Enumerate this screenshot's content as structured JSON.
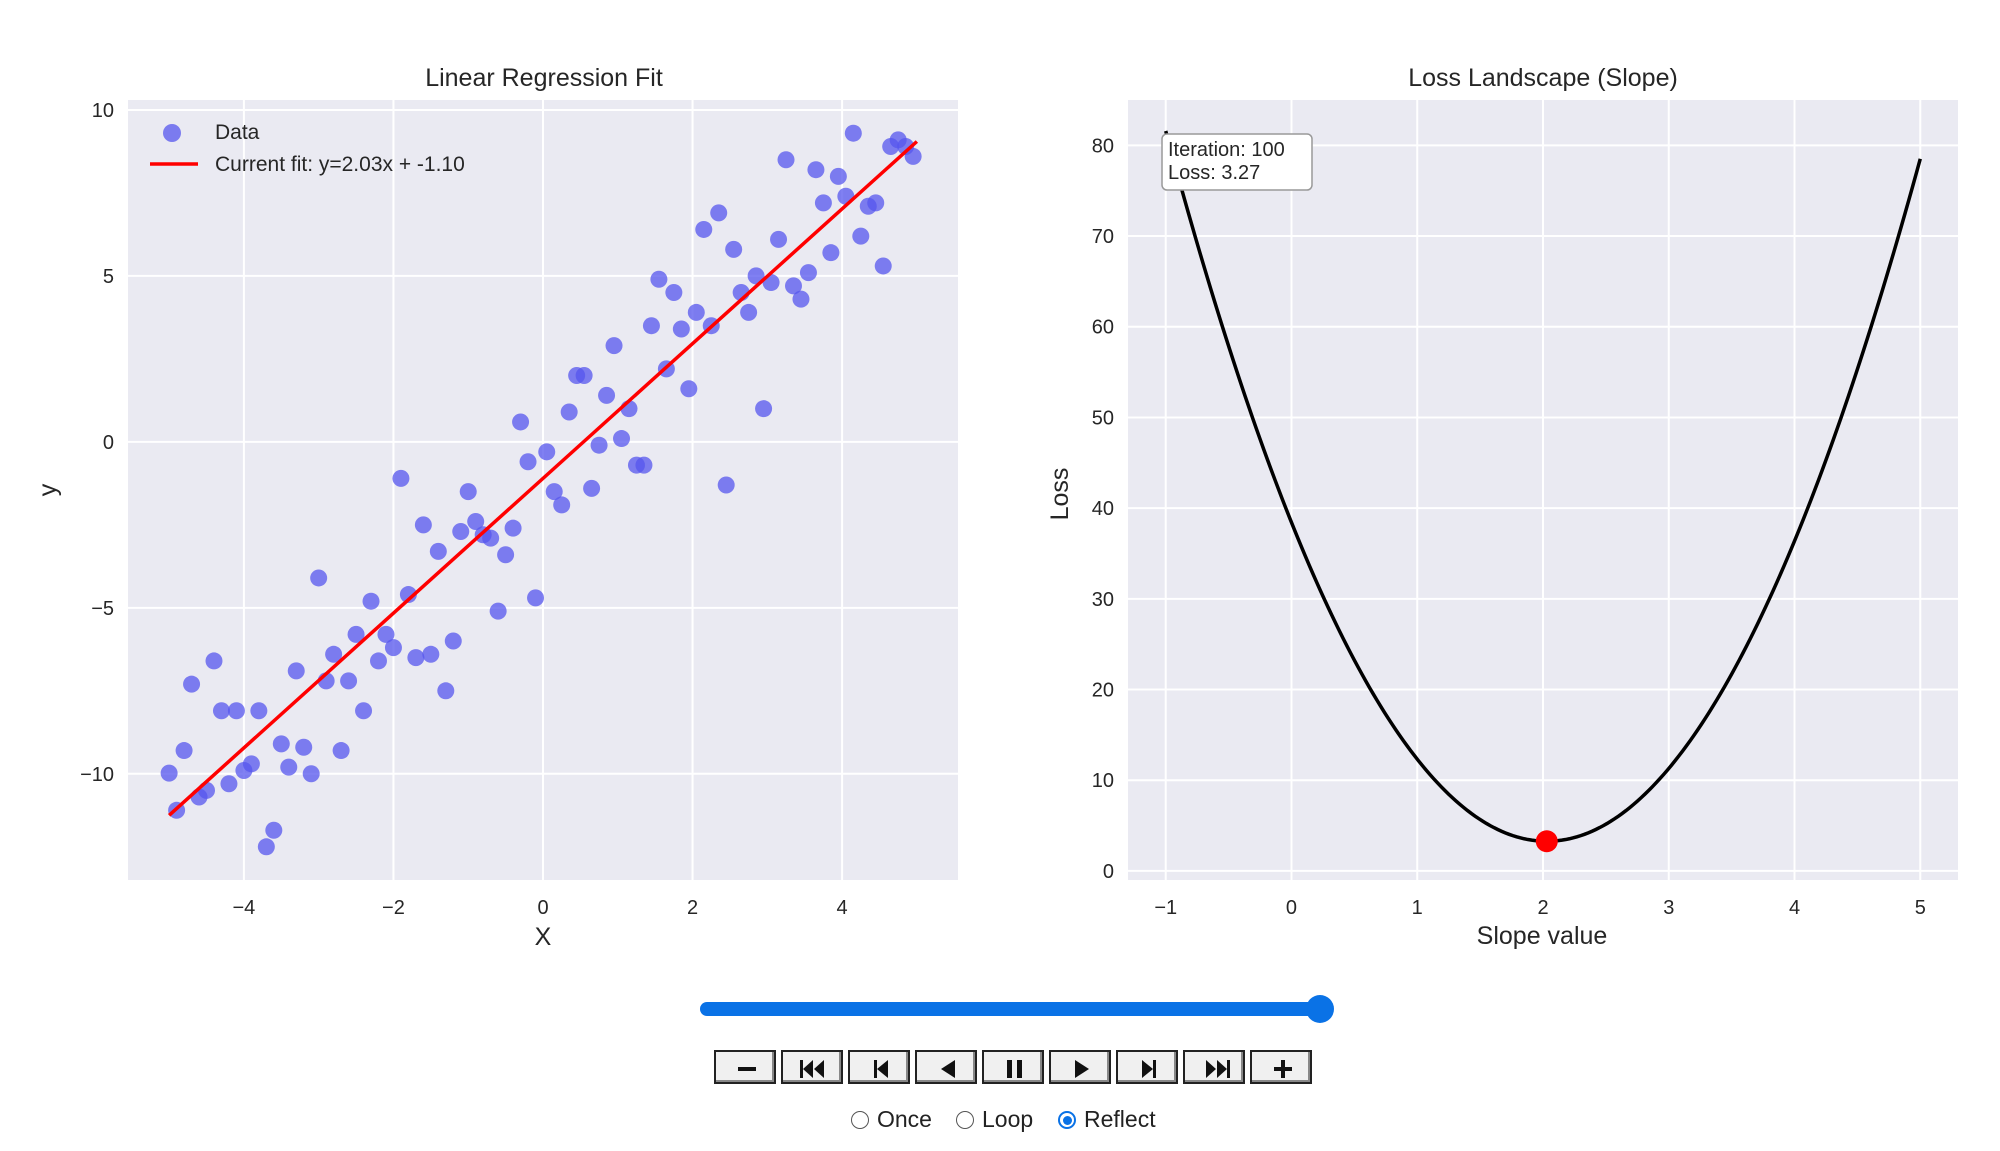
{
  "chart_data": [
    {
      "type": "scatter",
      "title": "Linear Regression Fit",
      "xlabel": "X",
      "ylabel": "y",
      "xlim": [
        -5.55,
        5.55
      ],
      "ylim": [
        -13.2,
        10.3
      ],
      "xticks": [
        -4,
        -2,
        0,
        2,
        4
      ],
      "xtick_labels": [
        "−4",
        "−2",
        "0",
        "2",
        "4"
      ],
      "yticks": [
        -10,
        -5,
        0,
        5,
        10
      ],
      "ytick_labels": [
        "−10",
        "−5",
        "0",
        "5",
        "10"
      ],
      "grid": true,
      "legend_position": "top-left",
      "legend": [
        "Data",
        "Current fit: y=2.03x + -1.10"
      ],
      "series": [
        {
          "name": "Data",
          "color": "#5555ee",
          "points": [
            [
              -5.0,
              -9.98
            ],
            [
              -4.9,
              -11.1
            ],
            [
              -4.8,
              -9.3
            ],
            [
              -4.7,
              -7.3
            ],
            [
              -4.6,
              -10.7
            ],
            [
              -4.5,
              -10.5
            ],
            [
              -4.4,
              -6.6
            ],
            [
              -4.3,
              -8.1
            ],
            [
              -4.2,
              -10.3
            ],
            [
              -4.1,
              -8.1
            ],
            [
              -4.0,
              -9.9
            ],
            [
              -3.9,
              -9.7
            ],
            [
              -3.8,
              -8.1
            ],
            [
              -3.7,
              -12.2
            ],
            [
              -3.6,
              -11.7
            ],
            [
              -3.5,
              -9.1
            ],
            [
              -3.4,
              -9.8
            ],
            [
              -3.3,
              -6.9
            ],
            [
              -3.2,
              -9.2
            ],
            [
              -3.1,
              -10.0
            ],
            [
              -3.0,
              -4.1
            ],
            [
              -2.9,
              -7.2
            ],
            [
              -2.8,
              -6.4
            ],
            [
              -2.7,
              -9.3
            ],
            [
              -2.6,
              -7.2
            ],
            [
              -2.5,
              -5.8
            ],
            [
              -2.4,
              -8.1
            ],
            [
              -2.3,
              -4.8
            ],
            [
              -2.2,
              -6.6
            ],
            [
              -2.1,
              -5.8
            ],
            [
              -2.0,
              -6.2
            ],
            [
              -1.9,
              -1.1
            ],
            [
              -1.8,
              -4.6
            ],
            [
              -1.7,
              -6.5
            ],
            [
              -1.6,
              -2.5
            ],
            [
              -1.5,
              -6.4
            ],
            [
              -1.4,
              -3.3
            ],
            [
              -1.3,
              -7.5
            ],
            [
              -1.2,
              -6.0
            ],
            [
              -1.1,
              -2.7
            ],
            [
              -1.0,
              -1.5
            ],
            [
              -0.9,
              -2.4
            ],
            [
              -0.8,
              -2.8
            ],
            [
              -0.7,
              -2.9
            ],
            [
              -0.6,
              -5.1
            ],
            [
              -0.5,
              -3.4
            ],
            [
              -0.4,
              -2.6
            ],
            [
              -0.3,
              0.6
            ],
            [
              -0.2,
              -0.6
            ],
            [
              -0.1,
              -4.7
            ],
            [
              0.05,
              -0.3
            ],
            [
              0.15,
              -1.5
            ],
            [
              0.25,
              -1.9
            ],
            [
              0.35,
              0.9
            ],
            [
              0.45,
              2.0
            ],
            [
              0.55,
              2.0
            ],
            [
              0.65,
              -1.4
            ],
            [
              0.75,
              -0.1
            ],
            [
              0.85,
              1.4
            ],
            [
              0.95,
              2.9
            ],
            [
              1.05,
              0.1
            ],
            [
              1.15,
              1.0
            ],
            [
              1.25,
              -0.7
            ],
            [
              1.35,
              -0.7
            ],
            [
              1.45,
              3.5
            ],
            [
              1.55,
              4.9
            ],
            [
              1.65,
              2.2
            ],
            [
              1.75,
              4.5
            ],
            [
              1.85,
              3.4
            ],
            [
              1.95,
              1.6
            ],
            [
              2.05,
              3.9
            ],
            [
              2.15,
              6.4
            ],
            [
              2.25,
              3.5
            ],
            [
              2.35,
              6.9
            ],
            [
              2.45,
              -1.3
            ],
            [
              2.55,
              5.8
            ],
            [
              2.65,
              4.5
            ],
            [
              2.75,
              3.9
            ],
            [
              2.85,
              5.0
            ],
            [
              2.95,
              1.0
            ],
            [
              3.05,
              4.8
            ],
            [
              3.15,
              6.1
            ],
            [
              3.25,
              8.5
            ],
            [
              3.35,
              4.7
            ],
            [
              3.45,
              4.3
            ],
            [
              3.55,
              5.1
            ],
            [
              3.65,
              8.2
            ],
            [
              3.75,
              7.2
            ],
            [
              3.85,
              5.7
            ],
            [
              3.95,
              8.0
            ],
            [
              4.05,
              7.4
            ],
            [
              4.15,
              9.3
            ],
            [
              4.25,
              6.2
            ],
            [
              4.35,
              7.1
            ],
            [
              4.45,
              7.2
            ],
            [
              4.55,
              5.3
            ],
            [
              4.65,
              8.9
            ],
            [
              4.75,
              9.1
            ],
            [
              4.85,
              8.9
            ],
            [
              4.95,
              8.6
            ]
          ]
        },
        {
          "name": "Current fit: y=2.03x + -1.10",
          "color": "#ff0000",
          "slope": 2.03,
          "intercept": -1.1,
          "x_range": [
            -5.0,
            5.0
          ]
        }
      ]
    },
    {
      "type": "line",
      "title": "Loss Landscape (Slope)",
      "xlabel": "Slope value",
      "ylabel": "Loss",
      "xlim": [
        -1.3,
        5.3
      ],
      "ylim": [
        -1,
        85
      ],
      "xticks": [
        -1,
        0,
        1,
        2,
        3,
        4,
        5
      ],
      "xtick_labels": [
        "−1",
        "0",
        "1",
        "2",
        "3",
        "4",
        "5"
      ],
      "yticks": [
        0,
        10,
        20,
        30,
        40,
        50,
        60,
        70,
        80
      ],
      "ytick_labels": [
        "0",
        "10",
        "20",
        "30",
        "40",
        "50",
        "60",
        "70",
        "80"
      ],
      "grid": true,
      "series": [
        {
          "color": "#000000",
          "x_range": [
            -1.0,
            5.0
          ],
          "curve": {
            "a": 8.53,
            "vertex_x": 2.03,
            "vertex_y": 3.27
          }
        }
      ],
      "marker": {
        "x": 2.03,
        "y": 3.27,
        "color": "#ff0000"
      },
      "annotation": {
        "line1": "Iteration: 100",
        "line2": "Loss: 3.27",
        "position": "top-left"
      }
    }
  ],
  "player": {
    "slider_value": 1.0,
    "buttons": [
      "minus-icon",
      "first-frame-icon",
      "step-back-icon",
      "play-reverse-icon",
      "pause-icon",
      "play-icon",
      "step-forward-icon",
      "last-frame-icon",
      "plus-icon"
    ],
    "modes": [
      {
        "label": "Once",
        "selected": false
      },
      {
        "label": "Loop",
        "selected": false
      },
      {
        "label": "Reflect",
        "selected": true
      }
    ],
    "accent": "#0a72e6"
  }
}
